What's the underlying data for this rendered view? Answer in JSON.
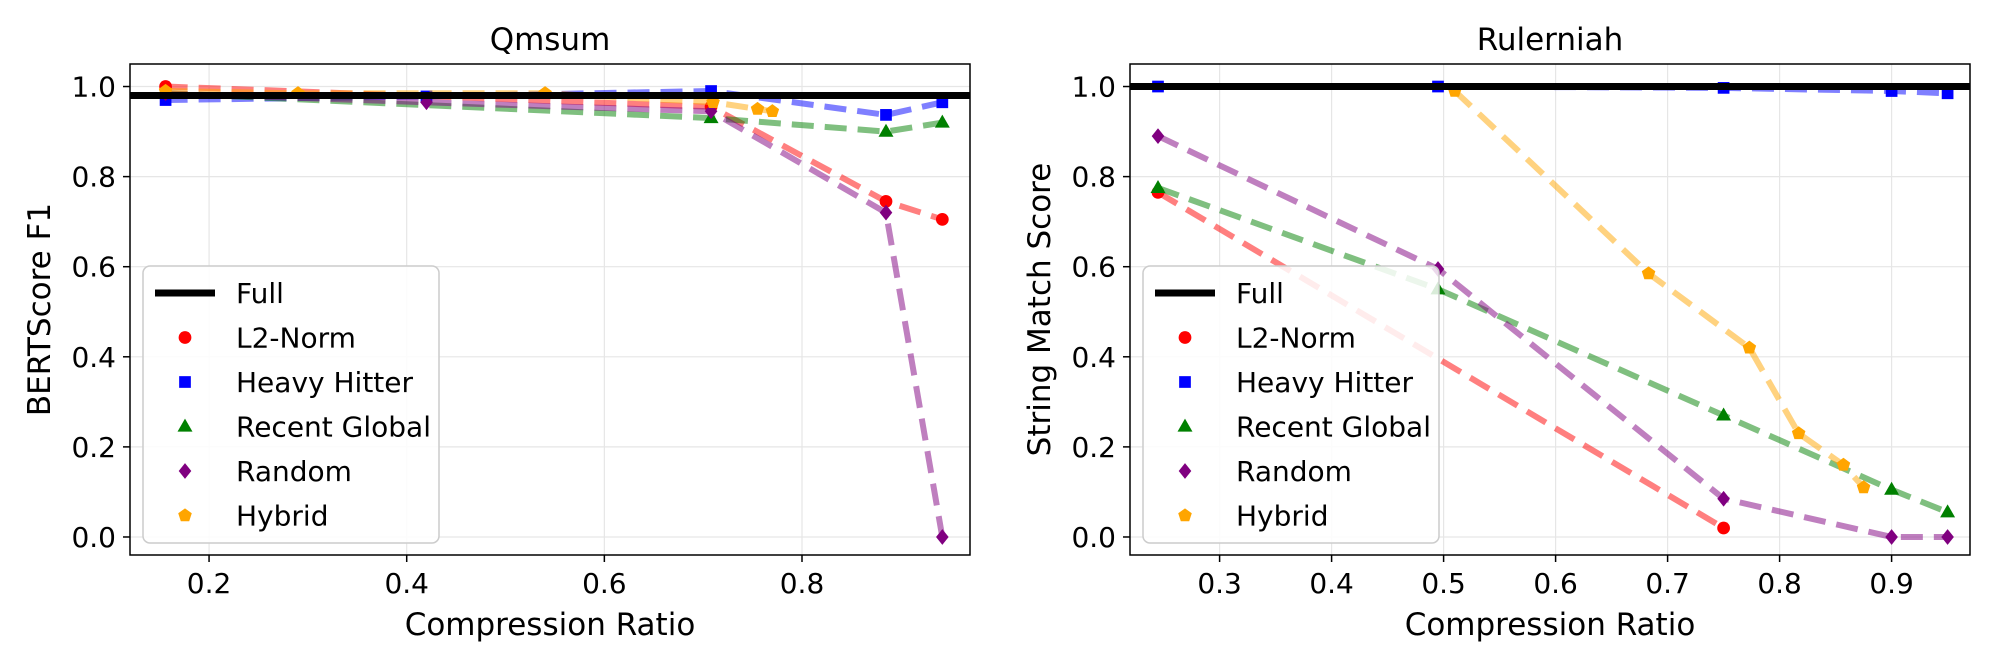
{
  "colors": {
    "Full": "#000000",
    "L2-Norm": "#ff0000",
    "Heavy Hitter": "#0000ff",
    "Recent Global": "#008000",
    "Random": "#800080",
    "Hybrid": "#ffa500"
  },
  "legend_entries": [
    "Full",
    "L2-Norm",
    "Heavy Hitter",
    "Recent Global",
    "Random",
    "Hybrid"
  ],
  "chart_data": [
    {
      "type": "line",
      "title": "Qmsum",
      "xlabel": "Compression Ratio",
      "ylabel": "BERTScore F1",
      "xlim": [
        0.12,
        0.97
      ],
      "ylim": [
        -0.04,
        1.05
      ],
      "xticks": [
        0.2,
        0.4,
        0.6,
        0.8
      ],
      "xtick_labels": [
        "0.2",
        "0.4",
        "0.6",
        "0.8"
      ],
      "yticks": [
        0.0,
        0.2,
        0.4,
        0.6,
        0.8,
        1.0
      ],
      "ytick_labels": [
        "0.0",
        "0.2",
        "0.4",
        "0.6",
        "0.8",
        "1.0"
      ],
      "grid": true,
      "legend_position": "lower-left",
      "reference_line": {
        "name": "Full",
        "y": 0.98
      },
      "series": [
        {
          "name": "L2-Norm",
          "marker": "circle",
          "x": [
            0.156,
            0.708,
            0.885,
            0.942
          ],
          "y": [
            1.0,
            0.955,
            0.745,
            0.705
          ]
        },
        {
          "name": "Heavy Hitter",
          "marker": "square",
          "x": [
            0.156,
            0.42,
            0.708,
            0.885,
            0.942
          ],
          "y": [
            0.97,
            0.978,
            0.99,
            0.937,
            0.965
          ]
        },
        {
          "name": "Recent Global",
          "marker": "triangle",
          "x": [
            0.156,
            0.708,
            0.885,
            0.942
          ],
          "y": [
            0.985,
            0.93,
            0.9,
            0.92
          ]
        },
        {
          "name": "Random",
          "marker": "diamond",
          "x": [
            0.156,
            0.42,
            0.708,
            0.885,
            0.942
          ],
          "y": [
            0.985,
            0.965,
            0.945,
            0.72,
            0.0
          ]
        },
        {
          "name": "Hybrid",
          "marker": "pentagon",
          "x": [
            0.156,
            0.29,
            0.54,
            0.71,
            0.755,
            0.77
          ],
          "y": [
            0.99,
            0.985,
            0.985,
            0.965,
            0.95,
            0.945
          ]
        }
      ]
    },
    {
      "type": "line",
      "title": "Rulerniah",
      "xlabel": "Compression Ratio",
      "ylabel": "String Match Score",
      "xlim": [
        0.22,
        0.97
      ],
      "ylim": [
        -0.04,
        1.05
      ],
      "xticks": [
        0.3,
        0.4,
        0.5,
        0.6,
        0.7,
        0.8,
        0.9
      ],
      "xtick_labels": [
        "0.3",
        "0.4",
        "0.5",
        "0.6",
        "0.7",
        "0.8",
        "0.9"
      ],
      "yticks": [
        0.0,
        0.2,
        0.4,
        0.6,
        0.8,
        1.0
      ],
      "ytick_labels": [
        "0.0",
        "0.2",
        "0.4",
        "0.6",
        "0.8",
        "1.0"
      ],
      "grid": true,
      "legend_position": "lower-left",
      "reference_line": {
        "name": "Full",
        "y": 1.0
      },
      "series": [
        {
          "name": "L2-Norm",
          "marker": "circle",
          "x": [
            0.245,
            0.75
          ],
          "y": [
            0.765,
            0.02
          ]
        },
        {
          "name": "Heavy Hitter",
          "marker": "square",
          "x": [
            0.245,
            0.495,
            0.75,
            0.9,
            0.95
          ],
          "y": [
            1.0,
            1.0,
            0.997,
            0.99,
            0.985
          ]
        },
        {
          "name": "Recent Global",
          "marker": "triangle",
          "x": [
            0.245,
            0.495,
            0.75,
            0.9,
            0.95
          ],
          "y": [
            0.775,
            0.55,
            0.27,
            0.105,
            0.055
          ]
        },
        {
          "name": "Random",
          "marker": "diamond",
          "x": [
            0.245,
            0.495,
            0.75,
            0.9,
            0.95
          ],
          "y": [
            0.89,
            0.595,
            0.085,
            0.0,
            0.0
          ]
        },
        {
          "name": "Hybrid",
          "marker": "pentagon",
          "x": [
            0.51,
            0.683,
            0.773,
            0.817,
            0.857,
            0.875
          ],
          "y": [
            0.99,
            0.585,
            0.42,
            0.23,
            0.16,
            0.11
          ]
        }
      ]
    }
  ]
}
